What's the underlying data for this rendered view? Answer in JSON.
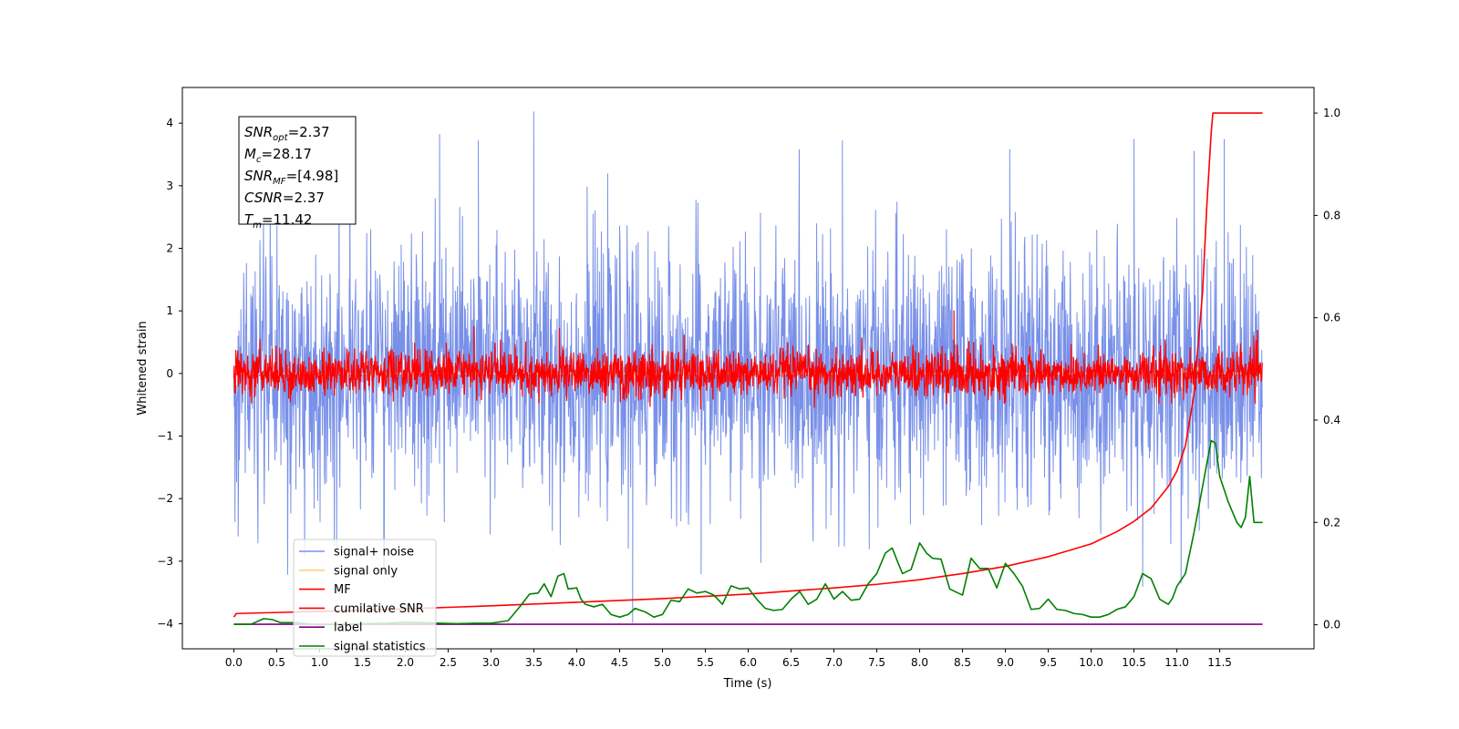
{
  "chart_data": {
    "type": "line",
    "title": "",
    "xlabel": "Time (s)",
    "ylabel": "Whitened strain",
    "y2label": "",
    "xlim": [
      -0.6,
      12.6
    ],
    "ylim": [
      -4.4,
      4.57
    ],
    "y2lim": [
      -0.047,
      1.05
    ],
    "xticks": [
      "0.0",
      "0.5",
      "1.0",
      "1.5",
      "2.0",
      "2.5",
      "3.0",
      "3.5",
      "4.0",
      "4.5",
      "5.0",
      "5.5",
      "6.0",
      "6.5",
      "7.0",
      "7.5",
      "8.0",
      "8.5",
      "9.0",
      "9.5",
      "10.0",
      "10.5",
      "11.0",
      "11.5"
    ],
    "yticks": [
      "4",
      "3",
      "2",
      "1",
      "0",
      "−1",
      "−2",
      "−3",
      "−4"
    ],
    "y2ticks": [
      "1.0",
      "0.8",
      "0.6",
      "0.4",
      "0.2",
      "0.0"
    ],
    "grid": false,
    "legend_position": "lower-left",
    "legend": [
      {
        "name": "signal+ noise",
        "color": "#7890e8"
      },
      {
        "name": "signal only",
        "color": "#ffd27f"
      },
      {
        "name": "MF",
        "color": "#ff0000"
      },
      {
        "name": "cumilative SNR",
        "color": "#ff0000"
      },
      {
        "name": "label",
        "color": "#800080"
      },
      {
        "name": "signal statistics",
        "color": "#008000"
      }
    ],
    "annotation": [
      {
        "base": "SNR",
        "sub": "opt",
        "rest": "=2.37"
      },
      {
        "base": "M",
        "sub": "c",
        "rest": "=28.17"
      },
      {
        "base": "SNR",
        "sub": "MF",
        "rest": "=[4.98]"
      },
      {
        "base": "CSNR",
        "sub": "",
        "rest": "=2.37"
      },
      {
        "base": "T",
        "sub": "m",
        "rest": "=11.42"
      }
    ],
    "series": [
      {
        "name": "signal+ noise",
        "axis": "left",
        "color": "#7890e8",
        "kind": "noise",
        "x_range": [
          0.0,
          12.0
        ],
        "std": 1.0,
        "spikes": [
          [
            3.5,
            4.18
          ],
          [
            2.4,
            3.82
          ],
          [
            2.85,
            3.72
          ],
          [
            1.35,
            3.63
          ],
          [
            7.1,
            3.72
          ],
          [
            10.5,
            3.74
          ],
          [
            11.2,
            3.55
          ],
          [
            11.55,
            3.74
          ],
          [
            9.05,
            3.58
          ],
          [
            1.75,
            -3.12
          ],
          [
            4.65,
            -3.98
          ],
          [
            5.45,
            -3.2
          ],
          [
            10.6,
            -3.4
          ],
          [
            11.05,
            -3.35
          ],
          [
            0.05,
            -2.6
          ]
        ]
      },
      {
        "name": "signal only",
        "axis": "left",
        "color": "#ffd27f",
        "kind": "line",
        "points": [
          [
            0.0,
            0.0
          ],
          [
            11.0,
            0.0
          ],
          [
            11.3,
            0.1
          ],
          [
            11.4,
            -0.25
          ],
          [
            11.42,
            0.0
          ],
          [
            12.0,
            0.0
          ]
        ]
      },
      {
        "name": "MF",
        "axis": "left",
        "color": "#ff0000",
        "kind": "noise",
        "x_range": [
          0.0,
          12.0
        ],
        "std": 0.18,
        "spikes": [
          [
            2.8,
            0.75
          ],
          [
            8.4,
            1.0
          ],
          [
            3.8,
            0.72
          ],
          [
            11.9,
            0.6
          ]
        ]
      },
      {
        "name": "cumilative SNR",
        "axis": "right",
        "color": "#ff0000",
        "kind": "line",
        "points": [
          [
            0.0,
            0.015
          ],
          [
            0.03,
            0.022
          ],
          [
            1.0,
            0.026
          ],
          [
            2.0,
            0.031
          ],
          [
            3.0,
            0.037
          ],
          [
            4.0,
            0.044
          ],
          [
            5.0,
            0.051
          ],
          [
            6.0,
            0.06
          ],
          [
            7.0,
            0.072
          ],
          [
            7.5,
            0.079
          ],
          [
            8.0,
            0.088
          ],
          [
            8.5,
            0.1
          ],
          [
            9.0,
            0.114
          ],
          [
            9.5,
            0.133
          ],
          [
            10.0,
            0.158
          ],
          [
            10.3,
            0.182
          ],
          [
            10.5,
            0.202
          ],
          [
            10.7,
            0.228
          ],
          [
            10.9,
            0.27
          ],
          [
            11.0,
            0.3
          ],
          [
            11.1,
            0.35
          ],
          [
            11.2,
            0.45
          ],
          [
            11.3,
            0.65
          ],
          [
            11.35,
            0.82
          ],
          [
            11.4,
            0.96
          ],
          [
            11.42,
            1.0
          ],
          [
            12.0,
            1.0
          ]
        ]
      },
      {
        "name": "label",
        "axis": "right",
        "color": "#800080",
        "kind": "line",
        "points": [
          [
            0.0,
            0.001
          ],
          [
            12.0,
            0.001
          ]
        ]
      },
      {
        "name": "signal statistics",
        "axis": "right",
        "color": "#008000",
        "kind": "line",
        "points": [
          [
            0.0,
            0.001
          ],
          [
            0.2,
            0.001
          ],
          [
            0.35,
            0.012
          ],
          [
            0.45,
            0.01
          ],
          [
            0.55,
            0.004
          ],
          [
            0.75,
            0.004
          ],
          [
            1.0,
            0.0
          ],
          [
            1.2,
            0.001
          ],
          [
            1.5,
            0.002
          ],
          [
            1.8,
            0.003
          ],
          [
            2.0,
            0.005
          ],
          [
            2.2,
            0.004
          ],
          [
            2.4,
            0.003
          ],
          [
            2.6,
            0.002
          ],
          [
            2.8,
            0.003
          ],
          [
            3.0,
            0.003
          ],
          [
            3.2,
            0.008
          ],
          [
            3.35,
            0.038
          ],
          [
            3.45,
            0.06
          ],
          [
            3.55,
            0.062
          ],
          [
            3.62,
            0.08
          ],
          [
            3.7,
            0.055
          ],
          [
            3.78,
            0.095
          ],
          [
            3.85,
            0.1
          ],
          [
            3.9,
            0.07
          ],
          [
            4.0,
            0.072
          ],
          [
            4.05,
            0.05
          ],
          [
            4.1,
            0.04
          ],
          [
            4.2,
            0.035
          ],
          [
            4.3,
            0.04
          ],
          [
            4.4,
            0.02
          ],
          [
            4.5,
            0.015
          ],
          [
            4.6,
            0.02
          ],
          [
            4.68,
            0.032
          ],
          [
            4.8,
            0.025
          ],
          [
            4.9,
            0.015
          ],
          [
            5.0,
            0.02
          ],
          [
            5.1,
            0.048
          ],
          [
            5.2,
            0.045
          ],
          [
            5.3,
            0.07
          ],
          [
            5.4,
            0.062
          ],
          [
            5.5,
            0.065
          ],
          [
            5.6,
            0.058
          ],
          [
            5.7,
            0.04
          ],
          [
            5.8,
            0.076
          ],
          [
            5.9,
            0.07
          ],
          [
            6.0,
            0.072
          ],
          [
            6.1,
            0.05
          ],
          [
            6.2,
            0.032
          ],
          [
            6.3,
            0.028
          ],
          [
            6.4,
            0.03
          ],
          [
            6.5,
            0.05
          ],
          [
            6.6,
            0.065
          ],
          [
            6.7,
            0.04
          ],
          [
            6.8,
            0.05
          ],
          [
            6.9,
            0.08
          ],
          [
            7.0,
            0.05
          ],
          [
            7.1,
            0.065
          ],
          [
            7.2,
            0.048
          ],
          [
            7.3,
            0.05
          ],
          [
            7.4,
            0.08
          ],
          [
            7.5,
            0.1
          ],
          [
            7.6,
            0.14
          ],
          [
            7.68,
            0.15
          ],
          [
            7.75,
            0.12
          ],
          [
            7.8,
            0.1
          ],
          [
            7.9,
            0.108
          ],
          [
            8.0,
            0.16
          ],
          [
            8.08,
            0.14
          ],
          [
            8.15,
            0.13
          ],
          [
            8.25,
            0.128
          ],
          [
            8.35,
            0.07
          ],
          [
            8.5,
            0.058
          ],
          [
            8.6,
            0.13
          ],
          [
            8.7,
            0.11
          ],
          [
            8.8,
            0.11
          ],
          [
            8.9,
            0.072
          ],
          [
            9.0,
            0.12
          ],
          [
            9.1,
            0.1
          ],
          [
            9.2,
            0.075
          ],
          [
            9.3,
            0.03
          ],
          [
            9.4,
            0.032
          ],
          [
            9.5,
            0.05
          ],
          [
            9.6,
            0.03
          ],
          [
            9.7,
            0.028
          ],
          [
            9.8,
            0.022
          ],
          [
            9.9,
            0.02
          ],
          [
            10.0,
            0.015
          ],
          [
            10.1,
            0.015
          ],
          [
            10.2,
            0.02
          ],
          [
            10.3,
            0.03
          ],
          [
            10.4,
            0.035
          ],
          [
            10.5,
            0.055
          ],
          [
            10.6,
            0.1
          ],
          [
            10.7,
            0.09
          ],
          [
            10.8,
            0.05
          ],
          [
            10.9,
            0.04
          ],
          [
            10.95,
            0.052
          ],
          [
            11.0,
            0.075
          ],
          [
            11.1,
            0.1
          ],
          [
            11.2,
            0.18
          ],
          [
            11.3,
            0.27
          ],
          [
            11.4,
            0.36
          ],
          [
            11.45,
            0.355
          ],
          [
            11.5,
            0.29
          ],
          [
            11.6,
            0.24
          ],
          [
            11.7,
            0.2
          ],
          [
            11.75,
            0.19
          ],
          [
            11.8,
            0.21
          ],
          [
            11.85,
            0.29
          ],
          [
            11.9,
            0.2
          ],
          [
            12.0,
            0.2
          ]
        ]
      }
    ]
  }
}
